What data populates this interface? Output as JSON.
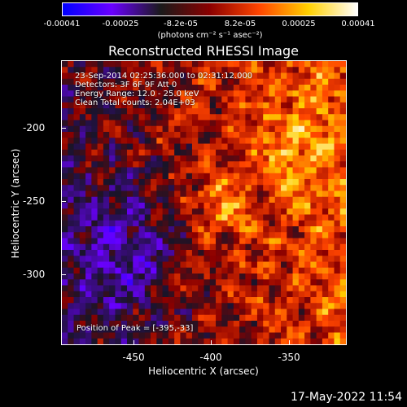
{
  "colorbar": {
    "tick_labels": [
      "-0.00041",
      "-0.00025",
      "-8.2e-05",
      "8.2e-05",
      "0.00025",
      "0.00041"
    ],
    "units": "(photons cm⁻² s⁻¹ asec⁻²)",
    "colors": [
      "#0000ff",
      "#6a00ff",
      "#1a1a1a",
      "#8b0000",
      "#ff4500",
      "#ffd000",
      "#ffffff"
    ]
  },
  "title": "Reconstructed RHESSI Image",
  "info_lines": [
    "23-Sep-2014 02:25:36.000 to 02:31:12.000",
    "Detectors: 3F 6F 9F  Att 0",
    "Energy Range: 12.0 - 25.0 keV",
    "Clean     Total counts: 2.04E+03"
  ],
  "peak_text": "Position of Peak = [-395,-33]",
  "timestamp": "17-May-2022 11:54",
  "chart_data": {
    "type": "heatmap",
    "title": "Reconstructed RHESSI Image",
    "xlabel": "Heliocentric X (arcsec)",
    "ylabel": "Heliocentric Y (arcsec)",
    "xticks": [
      -450,
      -400,
      -350
    ],
    "yticks": [
      -200,
      -250,
      -300
    ],
    "xlim": [
      -494,
      -312
    ],
    "ylim": [
      -343,
      -162
    ],
    "zlim": [
      -0.00041,
      0.00041
    ],
    "colormap": "blue-black-red-yellow-white"
  }
}
